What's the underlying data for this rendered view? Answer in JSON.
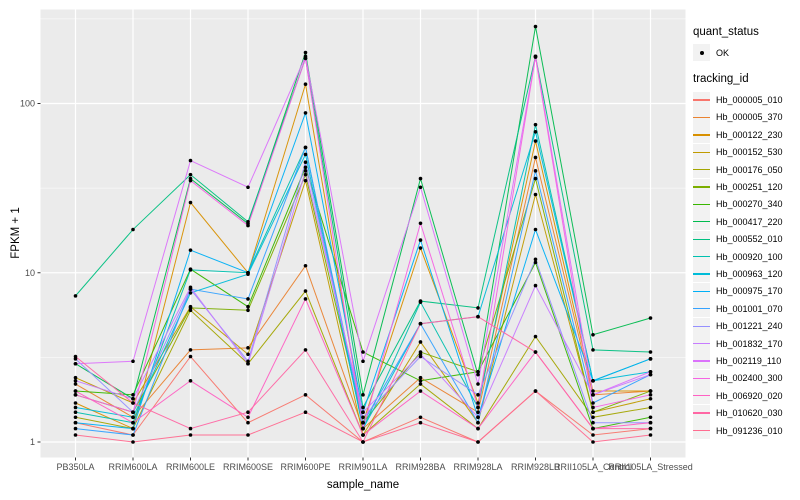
{
  "y_axis": {
    "title": "FPKM + 1",
    "tick_values": [
      100,
      10,
      1
    ],
    "tick_labels": [
      "100",
      "10",
      "1"
    ],
    "minor_tick_values": [
      316.23,
      31.623,
      3.1623
    ]
  },
  "x_axis": {
    "title": "sample_name",
    "categories": [
      "PB350LA",
      "RRIM600LA",
      "RRIM600LE",
      "RRIM600SE",
      "RRIM600PE",
      "RRIM901LA",
      "RRIM928BA",
      "RRIM928LA",
      "RRIM928LB",
      "RRII105LA_Control",
      "RRII105LA_Stressed"
    ]
  },
  "legend": {
    "quant_status_title": "quant_status",
    "quant_ok_label": "OK",
    "tracking_id_title": "tracking_id"
  },
  "colors": {
    "panel_bg": "#EBEBEB",
    "grid": "#FFFFFF",
    "legend_key_bg": "#F2F2F2",
    "axis_text": "#4D4D4D",
    "tick_mark": "#333333",
    "point": "#000000"
  },
  "chart_data": {
    "type": "line",
    "title": "",
    "xlabel": "sample_name",
    "ylabel": "FPKM + 1",
    "y_scale": "log10",
    "ylim": [
      1,
      360
    ],
    "grid": true,
    "legend_position": "right",
    "point_marker": "filled-circle-black",
    "categories": [
      "PB350LA",
      "RRIM600LA",
      "RRIM600LE",
      "RRIM600SE",
      "RRIM600PE",
      "RRIM901LA",
      "RRIM928BA",
      "RRIM928LA",
      "RRIM928LB",
      "RRII105LA_Control",
      "RRII105LA_Stressed"
    ],
    "series": [
      {
        "name": "Hb_000005_010",
        "color": "#F8766D",
        "values": [
          1.3,
          1.1,
          3.2,
          1.3,
          1.9,
          1.0,
          1.4,
          1.0,
          2.0,
          1.1,
          1.2
        ]
      },
      {
        "name": "Hb_000005_370",
        "color": "#EA8331",
        "values": [
          2.2,
          1.4,
          3.5,
          3.6,
          11.0,
          1.2,
          2.4,
          1.5,
          48.0,
          1.9,
          2.0
        ]
      },
      {
        "name": "Hb_000122_230",
        "color": "#D89000",
        "values": [
          1.7,
          1.2,
          26.0,
          10.0,
          130.0,
          1.3,
          14.0,
          1.7,
          60.0,
          2.0,
          2.0
        ]
      },
      {
        "name": "Hb_000152_530",
        "color": "#C09B00",
        "values": [
          2.4,
          1.7,
          6.3,
          3.3,
          35.0,
          1.1,
          3.9,
          1.3,
          29.0,
          1.5,
          1.8
        ]
      },
      {
        "name": "Hb_000176_050",
        "color": "#A3A500",
        "values": [
          1.4,
          1.2,
          6.0,
          2.9,
          7.8,
          1.1,
          2.2,
          1.2,
          4.2,
          1.4,
          1.6
        ]
      },
      {
        "name": "Hb_000251_120",
        "color": "#7CAE00",
        "values": [
          1.9,
          1.5,
          6.2,
          6.0,
          38.0,
          1.3,
          3.4,
          2.6,
          36.0,
          1.5,
          2.0
        ]
      },
      {
        "name": "Hb_000270_340",
        "color": "#39B600",
        "values": [
          2.0,
          1.9,
          10.5,
          6.3,
          42.0,
          3.4,
          2.3,
          2.6,
          11.5,
          1.2,
          1.4
        ]
      },
      {
        "name": "Hb_000417_220",
        "color": "#00BB4E",
        "values": [
          2.9,
          1.8,
          36.0,
          19.5,
          200.0,
          1.9,
          36.0,
          2.5,
          285.0,
          4.3,
          5.4
        ]
      },
      {
        "name": "Hb_000552_010",
        "color": "#00C081",
        "values": [
          7.3,
          18.0,
          38.0,
          20.0,
          185.0,
          1.6,
          6.8,
          6.2,
          190.0,
          3.5,
          3.4
        ]
      },
      {
        "name": "Hb_000920_100",
        "color": "#00C0AF",
        "values": [
          1.5,
          1.3,
          10.4,
          10.0,
          55.0,
          1.2,
          6.7,
          1.6,
          75.0,
          2.3,
          3.1
        ]
      },
      {
        "name": "Hb_000963_120",
        "color": "#00BCD8",
        "values": [
          1.6,
          1.4,
          7.6,
          9.8,
          50.0,
          1.2,
          5.0,
          5.5,
          68.0,
          2.3,
          2.6
        ]
      },
      {
        "name": "Hb_000975_170",
        "color": "#00B0F6",
        "values": [
          1.3,
          1.2,
          13.6,
          10.0,
          88.0,
          1.5,
          15.6,
          1.4,
          18.0,
          2.3,
          3.1
        ]
      },
      {
        "name": "Hb_001001_070",
        "color": "#35A2FF",
        "values": [
          1.2,
          1.1,
          8.0,
          7.0,
          55.0,
          1.3,
          5.0,
          1.3,
          40.0,
          1.7,
          2.5
        ]
      },
      {
        "name": "Hb_001221_240",
        "color": "#9590FF",
        "values": [
          3.1,
          1.5,
          8.0,
          3.0,
          45.0,
          1.4,
          3.2,
          1.9,
          12.0,
          1.3,
          1.3
        ]
      },
      {
        "name": "Hb_001832_170",
        "color": "#C77CFF",
        "values": [
          2.3,
          1.8,
          8.2,
          2.9,
          40.0,
          1.5,
          3.3,
          1.4,
          8.4,
          1.9,
          2.5
        ]
      },
      {
        "name": "Hb_002119_110",
        "color": "#DB72FB",
        "values": [
          2.9,
          3.0,
          46.0,
          32.0,
          190.0,
          3.0,
          32.0,
          2.2,
          190.0,
          1.9,
          2.6
        ]
      },
      {
        "name": "Hb_002400_300",
        "color": "#F564E3",
        "values": [
          1.9,
          1.5,
          35.0,
          19.0,
          185.0,
          1.2,
          19.6,
          1.6,
          188.0,
          1.6,
          1.9
        ]
      },
      {
        "name": "Hb_006920_020",
        "color": "#FF61C3",
        "values": [
          2.0,
          1.3,
          2.3,
          1.4,
          7.0,
          1.1,
          2.0,
          1.2,
          3.4,
          1.2,
          1.3
        ]
      },
      {
        "name": "Hb_010620_030",
        "color": "#FF67A4",
        "values": [
          3.2,
          1.7,
          1.2,
          1.5,
          3.5,
          1.0,
          5.0,
          5.5,
          3.4,
          1.2,
          1.2
        ]
      },
      {
        "name": "Hb_091236_010",
        "color": "#FF6C90",
        "values": [
          1.1,
          1.0,
          1.1,
          1.1,
          1.5,
          1.0,
          1.3,
          1.0,
          2.0,
          1.0,
          1.1
        ]
      }
    ]
  }
}
